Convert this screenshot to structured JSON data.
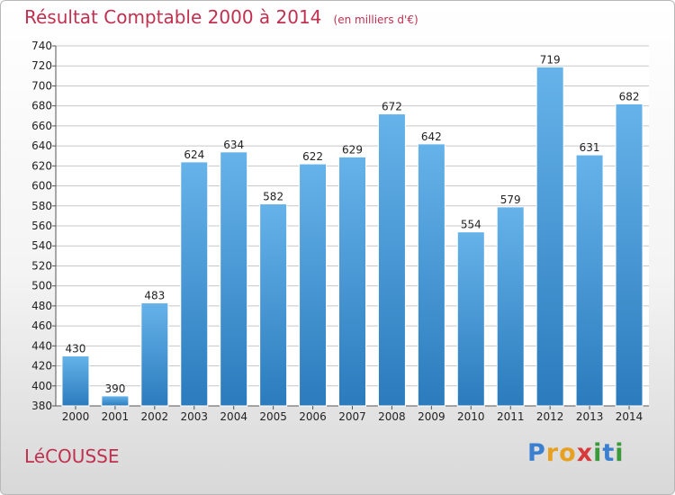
{
  "header": {
    "title": "Résultat Comptable 2000 à 2014",
    "subtitle": "(en milliers d'€)"
  },
  "footer": {
    "commune": "LéCOUSSE",
    "logo_letters": [
      {
        "ch": "P",
        "color": "#3a7fd0"
      },
      {
        "ch": "r",
        "color": "#e8a020"
      },
      {
        "ch": "o",
        "color": "#e8a020"
      },
      {
        "ch": "x",
        "color": "#d83a3a"
      },
      {
        "ch": "i",
        "color": "#3a9a3a"
      },
      {
        "ch": "t",
        "color": "#3a7fd0"
      },
      {
        "ch": "i",
        "color": "#3a9a3a"
      }
    ]
  },
  "colors": {
    "bar_light": "#66b3ea",
    "bar_dark": "#2b7bbd",
    "grid": "#c8c8c8"
  },
  "chart_data": {
    "type": "bar",
    "title": "Résultat Comptable 2000 à 2014",
    "subtitle": "(en milliers d'€)",
    "categories": [
      "2000",
      "2001",
      "2002",
      "2003",
      "2004",
      "2005",
      "2006",
      "2007",
      "2008",
      "2009",
      "2010",
      "2011",
      "2012",
      "2013",
      "2014"
    ],
    "values": [
      430,
      390,
      483,
      624,
      634,
      582,
      622,
      629,
      672,
      642,
      554,
      579,
      719,
      631,
      682
    ],
    "ylim": [
      380,
      740
    ],
    "ytick_step": 20,
    "grid": true,
    "xlabel": "",
    "ylabel": ""
  }
}
